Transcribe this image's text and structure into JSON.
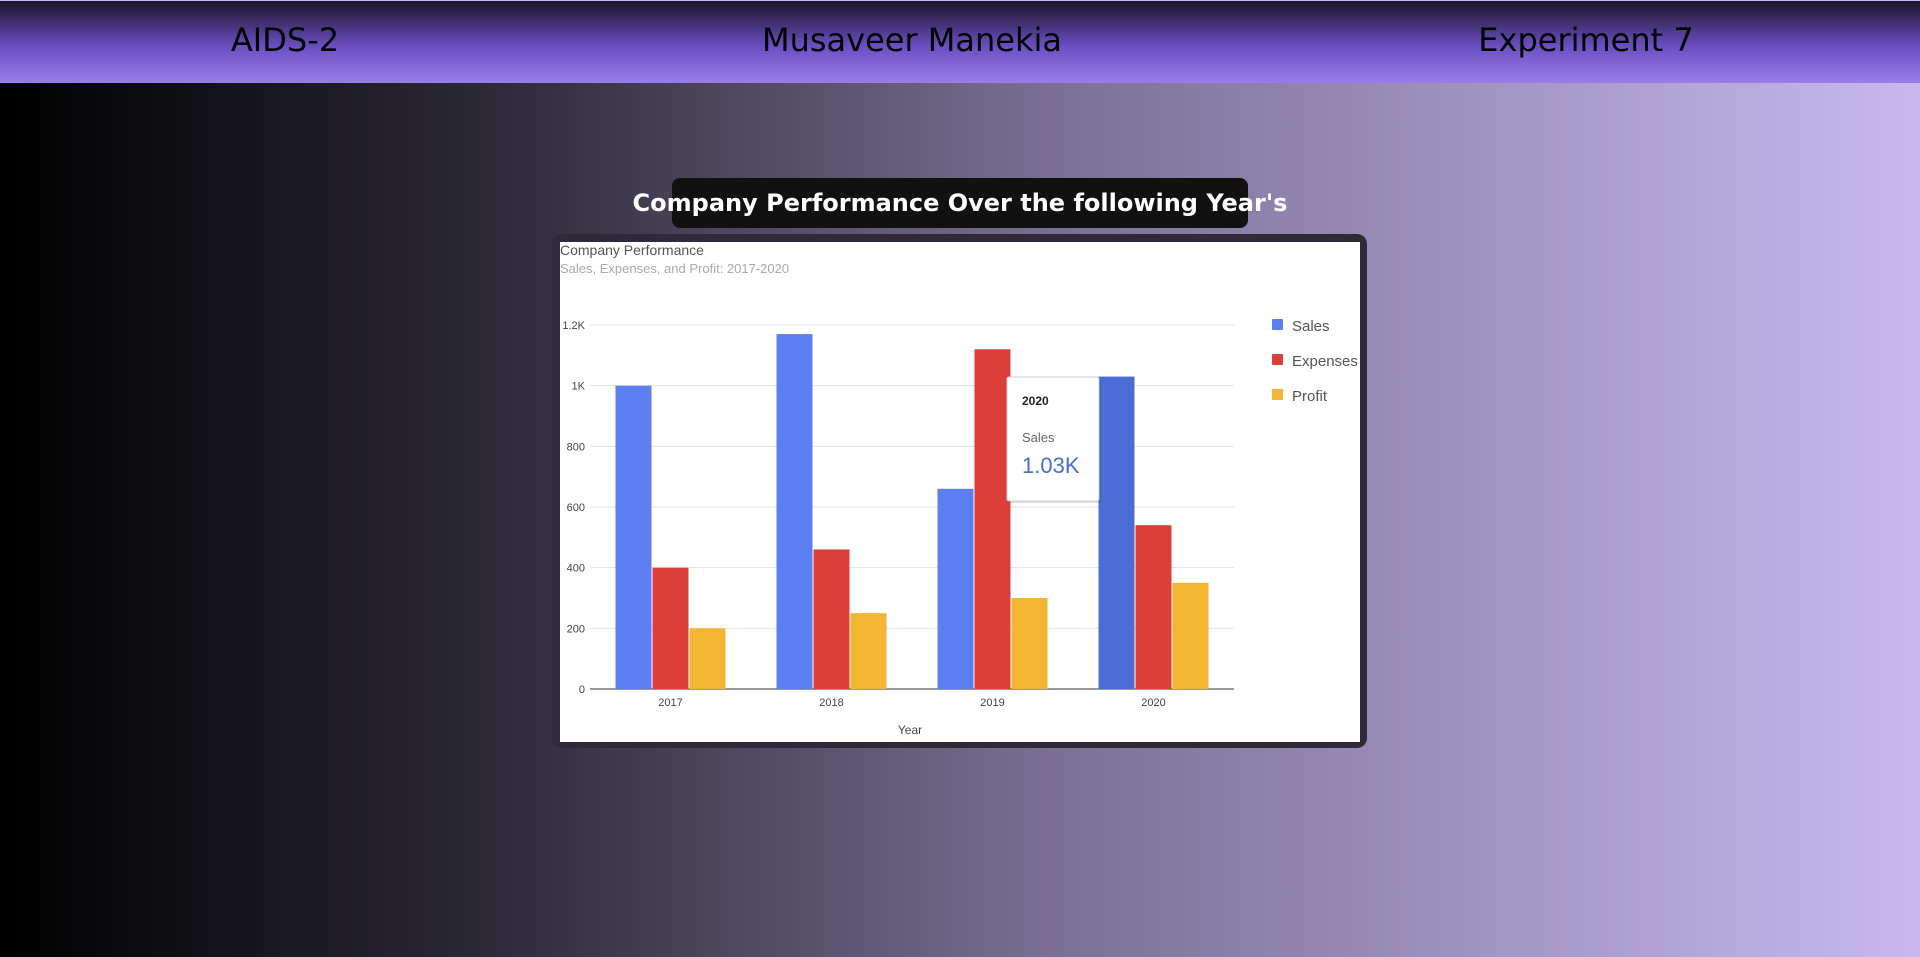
{
  "header": {
    "left": "AIDS-2",
    "center": "Musaveer Manekia",
    "right": "Experiment 7"
  },
  "page_title": "Company Performance Over the following Year's",
  "chart_data": {
    "type": "bar",
    "title": "Company Performance",
    "subtitle": "Sales, Expenses, and Profit: 2017-2020",
    "xlabel": "Year",
    "ylabel": "",
    "categories": [
      "2017",
      "2018",
      "2019",
      "2020"
    ],
    "series": [
      {
        "name": "Sales",
        "values": [
          1000,
          1170,
          660,
          1030
        ],
        "color": "#5b7ff0"
      },
      {
        "name": "Expenses",
        "values": [
          400,
          460,
          1120,
          540
        ],
        "color": "#dc3f38"
      },
      {
        "name": "Profit",
        "values": [
          200,
          250,
          300,
          350
        ],
        "color": "#f2b632"
      }
    ],
    "ylim": [
      0,
      1200
    ],
    "yticks": [
      0,
      200,
      400,
      600,
      800,
      1000,
      1200
    ],
    "ytick_labels": [
      "0",
      "200",
      "400",
      "600",
      "800",
      "1K",
      "1.2K"
    ],
    "grid": true,
    "legend_position": "right",
    "highlighted_color": "#4a6cd4",
    "tooltip": {
      "category": "2020",
      "series": "Sales",
      "value_label": "1.03K",
      "value_color": "#4a6cd4"
    }
  }
}
